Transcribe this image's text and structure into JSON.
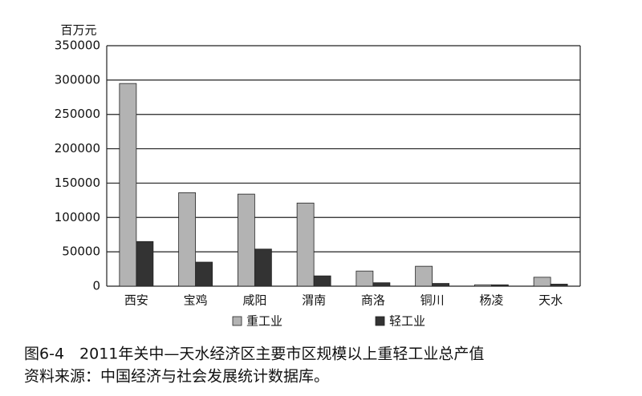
{
  "chart_data": {
    "type": "bar",
    "y_label": "百万元",
    "categories": [
      "西安",
      "宝鸡",
      "咸阳",
      "渭南",
      "商洛",
      "铜川",
      "杨凌",
      "天水"
    ],
    "series": [
      {
        "name": "重工业",
        "color": "#b3b3b3",
        "values": [
          295000,
          136000,
          134000,
          121000,
          22000,
          29000,
          2000,
          13000
        ]
      },
      {
        "name": "轻工业",
        "color": "#333333",
        "values": [
          65000,
          35000,
          54000,
          15000,
          5000,
          4000,
          2000,
          3000
        ]
      }
    ],
    "ylim": [
      0,
      350000
    ],
    "yticks": [
      0,
      50000,
      100000,
      150000,
      200000,
      250000,
      300000,
      350000
    ],
    "grid": true,
    "legend": "bottom",
    "caption": "图6-4　2011年关中—天水经济区主要市区规模以上重轻工业总产值",
    "source": "资料来源：中国经济与社会发展统计数据库。"
  }
}
